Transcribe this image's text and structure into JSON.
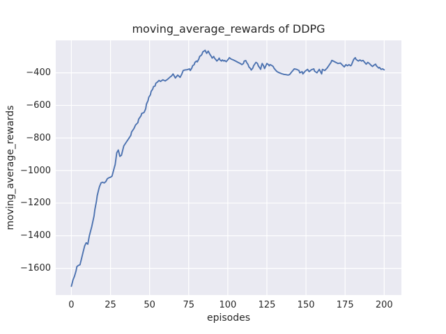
{
  "chart": {
    "title": "moving_average_rewards of DDPG",
    "xlabel": "episodes",
    "ylabel": "moving_average_rewards"
  },
  "chart_data": {
    "type": "line",
    "title": "moving_average_rewards of DDPG",
    "xlabel": "episodes",
    "ylabel": "moving_average_rewards",
    "style": "seaborn-darkgrid",
    "grid": true,
    "legend": "none",
    "xlim": [
      -10,
      211
    ],
    "ylim": [
      -1764,
      -201
    ],
    "x_ticks": [
      0,
      25,
      50,
      75,
      100,
      125,
      150,
      175,
      200
    ],
    "x_tick_labels": [
      "0",
      "25",
      "50",
      "75",
      "100",
      "125",
      "150",
      "175",
      "200"
    ],
    "y_ticks": [
      -400,
      -600,
      -800,
      -1000,
      -1200,
      -1400,
      -1600
    ],
    "y_tick_labels": [
      "−400",
      "−600",
      "−800",
      "−1000",
      "−1200",
      "−1400",
      "−1600"
    ],
    "colors": {
      "line": "#4c72b0",
      "axes_background": "#eaeaf2",
      "grid": "#ffffff",
      "text": "#262626",
      "figure_background": "#ffffff"
    },
    "series": [
      {
        "name": "moving_average_rewards",
        "x": [
          0,
          1,
          2,
          3,
          3.5,
          4.5,
          5.5,
          6.5,
          7.5,
          8.5,
          9.5,
          10.5,
          11.5,
          13,
          14.5,
          15,
          16,
          16.5,
          17.5,
          18,
          19,
          20,
          21,
          22,
          23,
          24,
          25,
          26,
          27.5,
          28,
          29,
          30,
          31,
          32,
          33.5,
          35,
          36.5,
          38,
          38.5,
          40,
          41,
          42.5,
          43,
          44.5,
          45,
          46,
          46.5,
          47.5,
          48,
          49,
          49.5,
          50.5,
          51,
          52,
          52.5,
          53.5,
          54,
          55,
          56,
          57,
          58.5,
          60,
          61.5,
          63,
          64,
          65,
          66.5,
          68,
          69.5,
          70.5,
          71.5,
          72.5,
          74,
          75.5,
          76,
          77,
          77.5,
          78.5,
          79,
          80,
          80.5,
          81.5,
          82,
          83,
          83.5,
          84,
          85.5,
          86,
          86.5,
          87.5,
          88.5,
          89.5,
          90,
          91,
          91.5,
          92.5,
          93,
          94,
          94.5,
          95,
          96,
          96.5,
          97.5,
          98,
          99,
          100.5,
          101,
          102,
          103.5,
          105,
          106.5,
          108,
          109,
          110,
          110.5,
          111.5,
          112,
          113,
          113.5,
          114.5,
          115,
          116,
          116.5,
          117.5,
          118,
          119,
          119.5,
          120.5,
          121,
          121.5,
          122,
          123,
          123.5,
          124,
          125,
          126,
          126.5,
          127,
          128,
          129,
          129.5,
          130.5,
          131.5,
          133,
          134,
          135,
          136,
          137,
          138.5,
          139.5,
          141,
          142.5,
          144,
          145.5,
          146,
          147.5,
          148,
          149.5,
          151,
          152,
          153.5,
          155,
          155.5,
          157,
          158.5,
          160,
          160.5,
          162,
          163.5,
          166,
          166.5,
          167.5,
          169,
          170.5,
          172,
          173,
          174.5,
          175.5,
          176.5,
          177.5,
          178.5,
          179,
          180.5,
          181.5,
          182,
          183.5,
          184.5,
          185.5,
          186.5,
          187.5,
          188.5,
          189.5,
          190.5,
          191.5,
          192.5,
          193.5,
          194.5,
          195,
          196.5,
          197,
          198,
          199,
          200
        ],
        "y": [
          -1710,
          -1672,
          -1648,
          -1615,
          -1590,
          -1582,
          -1578,
          -1540,
          -1500,
          -1462,
          -1443,
          -1452,
          -1400,
          -1345,
          -1278,
          -1240,
          -1190,
          -1155,
          -1115,
          -1098,
          -1075,
          -1072,
          -1076,
          -1068,
          -1050,
          -1044,
          -1041,
          -1034,
          -980,
          -963,
          -891,
          -874,
          -913,
          -906,
          -849,
          -827,
          -806,
          -784,
          -763,
          -742,
          -721,
          -706,
          -685,
          -664,
          -649,
          -646,
          -643,
          -621,
          -592,
          -571,
          -550,
          -535,
          -514,
          -500,
          -485,
          -481,
          -464,
          -457,
          -447,
          -453,
          -443,
          -450,
          -440,
          -427,
          -420,
          -407,
          -432,
          -414,
          -428,
          -410,
          -386,
          -383,
          -381,
          -376,
          -386,
          -371,
          -357,
          -350,
          -336,
          -328,
          -333,
          -315,
          -300,
          -293,
          -286,
          -272,
          -262,
          -272,
          -281,
          -267,
          -286,
          -300,
          -310,
          -300,
          -310,
          -321,
          -328,
          -318,
          -310,
          -321,
          -328,
          -321,
          -328,
          -324,
          -332,
          -315,
          -307,
          -315,
          -321,
          -328,
          -336,
          -343,
          -350,
          -343,
          -328,
          -325,
          -336,
          -350,
          -364,
          -374,
          -383,
          -371,
          -357,
          -343,
          -336,
          -343,
          -357,
          -371,
          -379,
          -357,
          -343,
          -360,
          -374,
          -364,
          -343,
          -350,
          -357,
          -350,
          -354,
          -361,
          -371,
          -383,
          -393,
          -400,
          -404,
          -407,
          -410,
          -411,
          -414,
          -411,
          -393,
          -376,
          -379,
          -386,
          -400,
          -393,
          -407,
          -390,
          -379,
          -393,
          -381,
          -376,
          -390,
          -400,
          -379,
          -407,
          -379,
          -386,
          -371,
          -336,
          -324,
          -328,
          -336,
          -343,
          -340,
          -350,
          -364,
          -350,
          -357,
          -350,
          -357,
          -353,
          -318,
          -307,
          -318,
          -328,
          -321,
          -328,
          -324,
          -336,
          -347,
          -336,
          -343,
          -353,
          -361,
          -353,
          -347,
          -357,
          -371,
          -367,
          -379,
          -376,
          -382
        ]
      }
    ]
  }
}
